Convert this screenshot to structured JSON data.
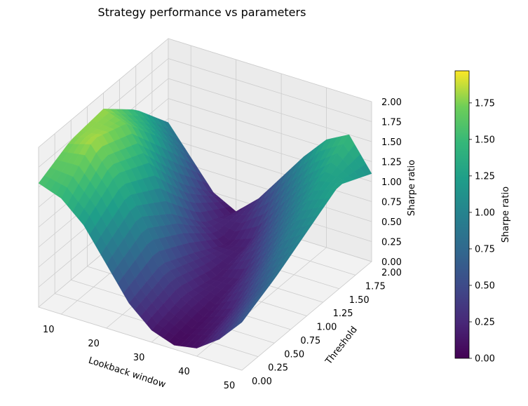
{
  "chart_data": {
    "type": "surface3d",
    "title": "Strategy performance vs parameters",
    "xlabel": "Lookback window",
    "ylabel": "Threshold",
    "zlabel": "Sharpe ratio",
    "xlim": [
      5,
      50
    ],
    "ylim": [
      0,
      2
    ],
    "zlim": [
      0,
      2
    ],
    "xticks": [
      "10",
      "20",
      "30",
      "40",
      "50"
    ],
    "yticks": [
      "0.00",
      "0.25",
      "0.50",
      "0.75",
      "1.00",
      "1.25",
      "1.50",
      "1.75",
      "2.00"
    ],
    "zticks": [
      "0.00",
      "0.25",
      "0.50",
      "0.75",
      "1.00",
      "1.25",
      "1.50",
      "1.75",
      "2.00"
    ],
    "colormap": "viridis",
    "colorbar": {
      "label": "Sharpe ratio",
      "range": [
        0,
        1.97
      ],
      "ticks": [
        "0.00",
        "0.25",
        "0.50",
        "0.75",
        "1.00",
        "1.25",
        "1.50",
        "1.75"
      ]
    },
    "surface_description": "valley of low Sharpe along a diagonal band rising toward high values near short lookback / high threshold",
    "lookback_samples": [
      5,
      10,
      15,
      20,
      25,
      30,
      35,
      40,
      45,
      50
    ],
    "threshold_samples": [
      0.0,
      0.5,
      1.0,
      1.5,
      2.0
    ],
    "sharpe_grid": [
      [
        1.55,
        1.75,
        1.8,
        1.45,
        0.95
      ],
      [
        1.45,
        1.85,
        1.7,
        1.2,
        0.6
      ],
      [
        1.2,
        1.5,
        1.3,
        0.7,
        0.25
      ],
      [
        0.8,
        1.05,
        0.75,
        0.3,
        0.1
      ],
      [
        0.4,
        0.55,
        0.35,
        0.12,
        0.35
      ],
      [
        0.15,
        0.25,
        0.15,
        0.2,
        0.7
      ],
      [
        0.05,
        0.1,
        0.2,
        0.55,
        1.05
      ],
      [
        0.1,
        0.2,
        0.5,
        0.9,
        1.35
      ],
      [
        0.3,
        0.5,
        0.85,
        1.2,
        1.5
      ],
      [
        0.6,
        0.8,
        1.05,
        1.3,
        1.1
      ]
    ]
  }
}
